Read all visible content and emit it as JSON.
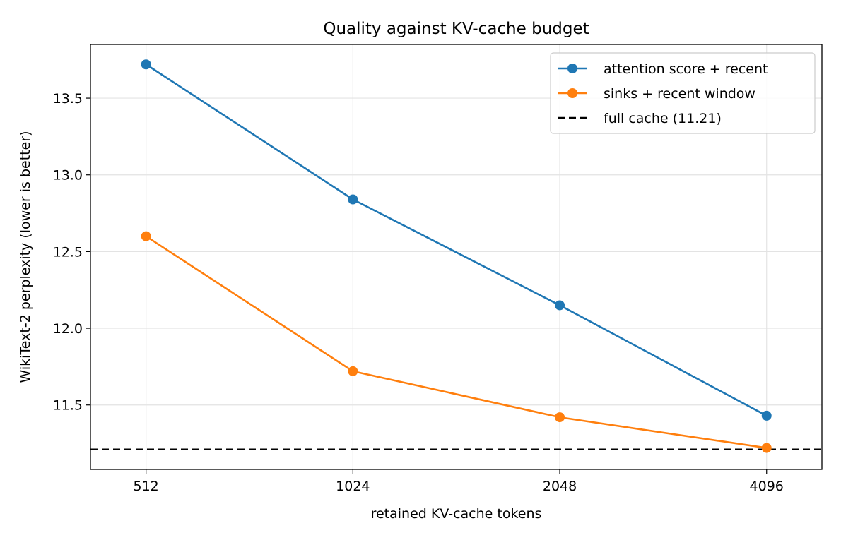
{
  "chart_data": {
    "type": "line",
    "title": "Quality against KV-cache budget",
    "xlabel": "retained KV-cache tokens",
    "ylabel": "WikiText-2 perplexity (lower is better)",
    "x_scale": "log2",
    "categories": [
      "512",
      "1024",
      "2048",
      "4096"
    ],
    "x": [
      512,
      1024,
      2048,
      4096
    ],
    "xlim": [
      425,
      4930
    ],
    "ylim": [
      11.08,
      13.85
    ],
    "y_ticks": [
      "11.5",
      "12.0",
      "12.5",
      "13.0",
      "13.5"
    ],
    "grid": true,
    "legend_position": "top-right",
    "series": [
      {
        "name": "attention score + recent",
        "color": "#1f77b4",
        "values": [
          13.72,
          12.84,
          12.15,
          11.43
        ]
      },
      {
        "name": "sinks + recent window",
        "color": "#ff7f0e",
        "values": [
          12.6,
          11.72,
          11.42,
          11.22
        ]
      }
    ],
    "reference_line": {
      "name": "full cache (11.21)",
      "value": 11.21,
      "color": "#000000",
      "style": "dashed"
    }
  }
}
